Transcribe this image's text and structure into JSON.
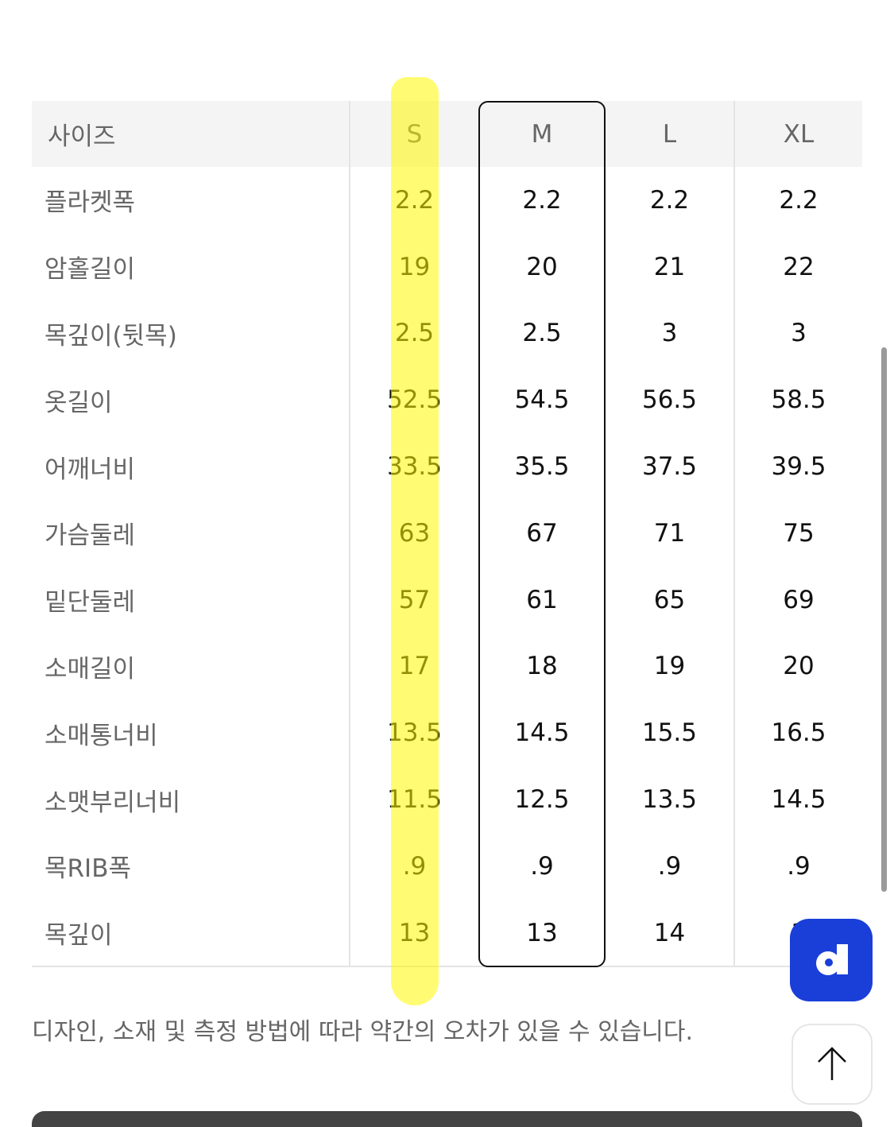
{
  "table": {
    "header": {
      "label": "사이즈",
      "sizes": [
        "S",
        "M",
        "L",
        "XL"
      ]
    },
    "rows": [
      {
        "label": "플라켓폭",
        "values": [
          "2.2",
          "2.2",
          "2.2",
          "2.2"
        ]
      },
      {
        "label": "암홀길이",
        "values": [
          "19",
          "20",
          "21",
          "22"
        ]
      },
      {
        "label": "목깊이(뒷목)",
        "values": [
          "2.5",
          "2.5",
          "3",
          "3"
        ]
      },
      {
        "label": "옷길이",
        "values": [
          "52.5",
          "54.5",
          "56.5",
          "58.5"
        ]
      },
      {
        "label": "어깨너비",
        "values": [
          "33.5",
          "35.5",
          "37.5",
          "39.5"
        ]
      },
      {
        "label": "가슴둘레",
        "values": [
          "63",
          "67",
          "71",
          "75"
        ]
      },
      {
        "label": "밑단둘레",
        "values": [
          "57",
          "61",
          "65",
          "69"
        ]
      },
      {
        "label": "소매길이",
        "values": [
          "17",
          "18",
          "19",
          "20"
        ]
      },
      {
        "label": "소매통너비",
        "values": [
          "13.5",
          "14.5",
          "15.5",
          "16.5"
        ]
      },
      {
        "label": "소맷부리너비",
        "values": [
          "11.5",
          "12.5",
          "13.5",
          "14.5"
        ]
      },
      {
        "label": "목RIB폭",
        "values": [
          ".9",
          ".9",
          ".9",
          ".9"
        ]
      },
      {
        "label": "목깊이",
        "values": [
          "13",
          "13",
          "14",
          "1"
        ]
      }
    ]
  },
  "note": "디자인, 소재 및 측정 방법에 따라 약간의 오차가 있을 수 있습니다.",
  "floating": {
    "app_icon": "d-logo-icon",
    "app_color": "#1a3fd8",
    "top_icon": "arrow-up-icon"
  },
  "highlight_color": "#fff700"
}
